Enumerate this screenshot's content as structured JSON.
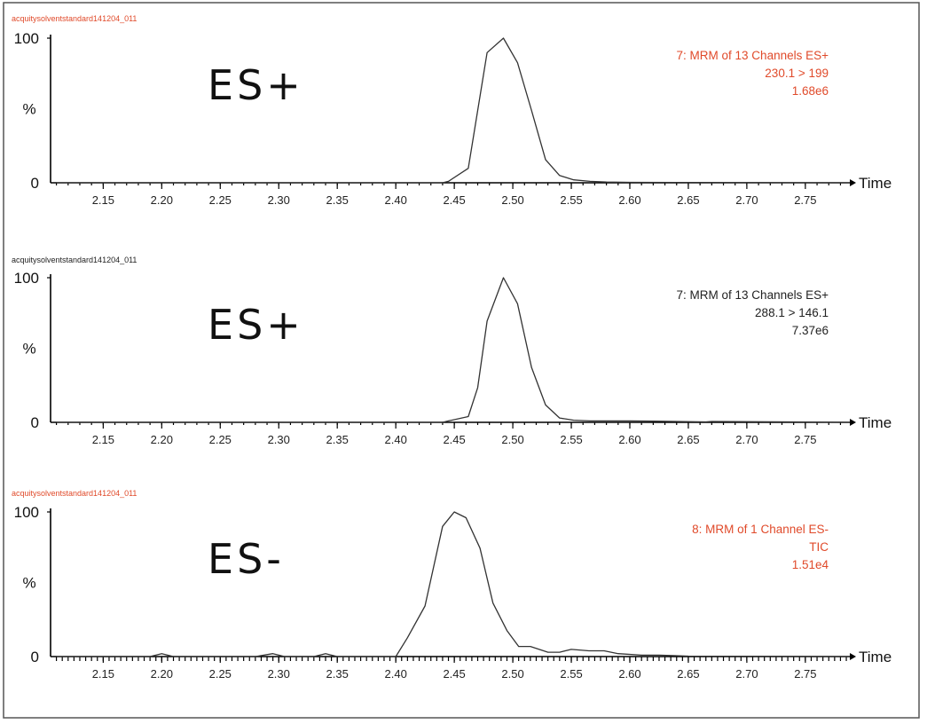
{
  "colors": {
    "accent_red": "#e04a2a",
    "text_dark": "#222222",
    "trace": "#333333"
  },
  "chart_data": [
    {
      "type": "line",
      "source_label": "acquitysolventstandard141204_011",
      "mode_label": "ES+",
      "info_lines": [
        "7: MRM of 13 Channels ES+",
        "230.1 > 199",
        "1.68e6"
      ],
      "info_color": "#e04a2a",
      "source_color": "#e04a2a",
      "xlabel": "Time",
      "ylabel": "%",
      "ytick_top": "100",
      "ytick_bottom": "0",
      "xticks": [
        "2.15",
        "2.20",
        "2.25",
        "2.30",
        "2.35",
        "2.40",
        "2.45",
        "2.50",
        "2.55",
        "2.60",
        "2.65",
        "2.70",
        "2.75"
      ],
      "xlim": [
        2.105,
        2.788
      ],
      "ylim": [
        0,
        100
      ],
      "dense_minor_ticks": false,
      "x": [
        2.11,
        2.44,
        2.445,
        2.462,
        2.478,
        2.492,
        2.504,
        2.516,
        2.528,
        2.54,
        2.552,
        2.566,
        2.58,
        2.6,
        2.65,
        2.7,
        2.788
      ],
      "y": [
        0,
        0,
        1,
        10,
        90,
        100,
        83,
        50,
        16,
        5,
        2,
        1,
        0.5,
        0.3,
        0.2,
        0.1,
        0
      ]
    },
    {
      "type": "line",
      "source_label": "acquitysolventstandard141204_011",
      "mode_label": "ES+",
      "info_lines": [
        "7: MRM of 13 Channels ES+",
        "288.1 > 146.1",
        "7.37e6"
      ],
      "info_color": "#222222",
      "source_color": "#222222",
      "xlabel": "Time",
      "ylabel": "%",
      "ytick_top": "100",
      "ytick_bottom": "0",
      "xticks": [
        "2.15",
        "2.20",
        "2.25",
        "2.30",
        "2.35",
        "2.40",
        "2.45",
        "2.50",
        "2.55",
        "2.60",
        "2.65",
        "2.70",
        "2.75"
      ],
      "xlim": [
        2.105,
        2.788
      ],
      "ylim": [
        0,
        100
      ],
      "dense_minor_ticks": false,
      "x": [
        2.11,
        2.44,
        2.445,
        2.462,
        2.47,
        2.478,
        2.492,
        2.504,
        2.516,
        2.528,
        2.54,
        2.552,
        2.566,
        2.6,
        2.62,
        2.665,
        2.67,
        2.788
      ],
      "y": [
        0,
        0,
        1,
        4,
        24,
        70,
        100,
        82,
        38,
        12,
        3,
        1.5,
        1,
        1,
        0.8,
        0.3,
        0.6,
        0
      ]
    },
    {
      "type": "line",
      "source_label": "acquitysolventstandard141204_011",
      "mode_label": "ES-",
      "info_lines": [
        "8: MRM of 1 Channel ES-",
        "TIC",
        "1.51e4"
      ],
      "info_color": "#e04a2a",
      "source_color": "#e04a2a",
      "xlabel": "Time",
      "ylabel": "%",
      "ytick_top": "100",
      "ytick_bottom": "0",
      "xticks": [
        "2.15",
        "2.20",
        "2.25",
        "2.30",
        "2.35",
        "2.40",
        "2.45",
        "2.50",
        "2.55",
        "2.60",
        "2.65",
        "2.70",
        "2.75"
      ],
      "xlim": [
        2.105,
        2.788
      ],
      "ylim": [
        0,
        100
      ],
      "dense_minor_ticks": true,
      "x": [
        2.11,
        2.19,
        2.2,
        2.21,
        2.28,
        2.295,
        2.305,
        2.33,
        2.34,
        2.35,
        2.4,
        2.41,
        2.425,
        2.44,
        2.45,
        2.46,
        2.472,
        2.483,
        2.495,
        2.505,
        2.515,
        2.53,
        2.54,
        2.55,
        2.565,
        2.578,
        2.59,
        2.61,
        2.625,
        2.65,
        2.788
      ],
      "y": [
        0,
        0,
        2,
        0,
        0,
        2,
        0,
        0,
        2,
        0,
        0,
        13,
        35,
        90,
        100,
        96,
        75,
        37,
        18,
        7,
        7,
        3,
        3,
        5,
        4,
        4,
        2,
        1,
        1,
        0.3,
        0
      ]
    }
  ]
}
